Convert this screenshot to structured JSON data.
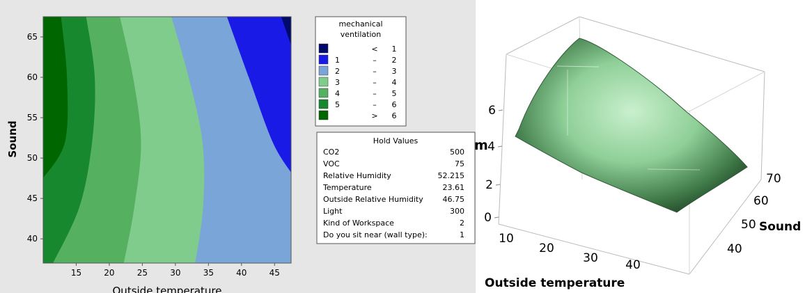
{
  "chart_data": [
    {
      "type": "contour",
      "xlabel": "Outside temperature",
      "ylabel": "Sound",
      "xlim": [
        10,
        47.5
      ],
      "ylim": [
        37,
        67.5
      ],
      "x_ticks": [
        "15",
        "20",
        "25",
        "30",
        "35",
        "40",
        "45"
      ],
      "y_ticks": [
        "40",
        "45",
        "50",
        "55",
        "60",
        "65"
      ],
      "legend": {
        "title": [
          "mechanical",
          "ventilation"
        ],
        "entries": [
          {
            "lo": "",
            "sep": "<",
            "hi": "1",
            "color": "#000a6b"
          },
          {
            "lo": "1",
            "sep": "–",
            "hi": "2",
            "color": "#1a1ae6"
          },
          {
            "lo": "2",
            "sep": "–",
            "hi": "3",
            "color": "#7aa5d8"
          },
          {
            "lo": "3",
            "sep": "–",
            "hi": "4",
            "color": "#7fcc8c"
          },
          {
            "lo": "4",
            "sep": "–",
            "hi": "5",
            "color": "#55b060"
          },
          {
            "lo": "5",
            "sep": "–",
            "hi": "6",
            "color": "#17882e"
          },
          {
            "lo": "",
            "sep": ">",
            "hi": "6",
            "color": "#006600"
          }
        ]
      },
      "contour_boundaries": [
        {
          "level": "6",
          "points": [
            [
              12.7,
              67.5
            ],
            [
              13.6,
              60
            ],
            [
              13.3,
              52
            ],
            [
              10,
              47.5
            ]
          ]
        },
        {
          "level": "5",
          "points": [
            [
              16.5,
              67.5
            ],
            [
              17.8,
              60
            ],
            [
              17.4,
              52
            ],
            [
              15.5,
              44
            ],
            [
              11.5,
              37
            ]
          ]
        },
        {
          "level": "4",
          "points": [
            [
              21.6,
              67.5
            ],
            [
              23.6,
              60
            ],
            [
              24.8,
              52
            ],
            [
              23.8,
              44
            ],
            [
              22.2,
              37
            ]
          ]
        },
        {
          "level": "3",
          "points": [
            [
              29.4,
              67.5
            ],
            [
              32.0,
              60
            ],
            [
              34.1,
              52
            ],
            [
              34.2,
              44
            ],
            [
              33.0,
              37
            ]
          ]
        },
        {
          "level": "2",
          "points": [
            [
              37.8,
              67.5
            ],
            [
              41.1,
              60
            ],
            [
              44.7,
              52
            ],
            [
              47.5,
              48.2
            ]
          ]
        },
        {
          "level": "1",
          "points": [
            [
              46.0,
              67.5
            ],
            [
              47.5,
              64.0
            ]
          ]
        }
      ],
      "hold_values": {
        "title": "Hold Values",
        "rows": [
          {
            "label": "CO2",
            "value": "500"
          },
          {
            "label": "VOC",
            "value": "75"
          },
          {
            "label": "Relative Humidity",
            "value": "52.215"
          },
          {
            "label": "Temperature",
            "value": "23.61"
          },
          {
            "label": "Outside Relative Humidity",
            "value": "46.75"
          },
          {
            "label": "Light",
            "value": "300"
          },
          {
            "label": "Kind of Workspace",
            "value": "2"
          },
          {
            "label": "Do you sit near  (wall type):",
            "value": "1"
          }
        ]
      }
    },
    {
      "type": "surface",
      "xlabel": "Outside temperature",
      "ylabel": "Sound",
      "zlabel": "m",
      "x_ticks": [
        "10",
        "20",
        "30",
        "40"
      ],
      "y_ticks": [
        "40",
        "50",
        "60",
        "70"
      ],
      "z_ticks": [
        "0",
        "2",
        "4",
        "6"
      ],
      "surface_corners": [
        {
          "outside_temperature": 10,
          "sound": 70,
          "value": 6.8
        },
        {
          "outside_temperature": 10,
          "sound": 37,
          "value": 4.6
        },
        {
          "outside_temperature": 47,
          "sound": 37,
          "value": 1.8
        },
        {
          "outside_temperature": 47,
          "sound": 70,
          "value": 3.6
        }
      ],
      "surface_color": "#7fcc8c"
    }
  ]
}
